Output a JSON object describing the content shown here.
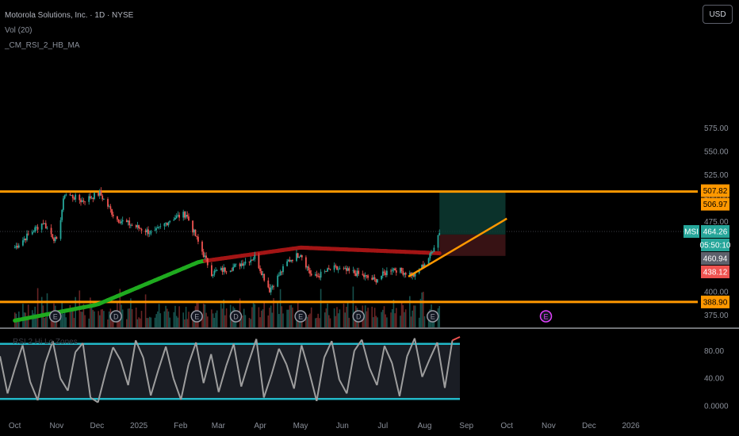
{
  "legend": {
    "symbol_line": "Motorola Solutions, Inc. · 1D · NYSE",
    "vol_line": "Vol (20)",
    "indicator_line": "_CM_RSI_2_HB_MA",
    "rsi_caption": "RSI 2 Hi Lo Zones"
  },
  "currency_button": "USD",
  "colors": {
    "background": "#000000",
    "orange_level": "#ff9800",
    "up_candle": "#26a69a",
    "down_candle": "#ef5350",
    "ma_green": "#1faa1f",
    "ma_red": "#a31515",
    "rsi_line": "#9e9e9e",
    "rsi_bands": "#22b8c8",
    "earnings_marker": "#e040fb"
  },
  "chart_data": [
    {
      "type": "candlestick",
      "symbol": "MSI",
      "exchange": "NYSE",
      "interval": "1D",
      "y_axis": {
        "ticks": [
          375,
          400,
          425,
          450,
          475,
          500,
          525,
          550,
          575
        ],
        "tick_labels": [
          "375.00",
          "400.00",
          "425.00",
          "450.00",
          "475.00",
          "500.00",
          "525.00",
          "550.00",
          "575.00"
        ],
        "visible_range": [
          368,
          600
        ]
      },
      "x_axis": {
        "labels": [
          "Oct",
          "Nov",
          "Dec",
          "2025",
          "Feb",
          "Mar",
          "Apr",
          "May",
          "Jun",
          "Jul",
          "Aug",
          "Sep",
          "Oct",
          "Nov",
          "Dec",
          "2026"
        ]
      },
      "price_path": [
        {
          "t": "2024-10-01",
          "close": 447
        },
        {
          "t": "2024-10-12",
          "close": 462
        },
        {
          "t": "2024-10-22",
          "close": 474
        },
        {
          "t": "2024-11-01",
          "close": 453
        },
        {
          "t": "2024-11-07",
          "close": 505
        },
        {
          "t": "2024-11-20",
          "close": 497
        },
        {
          "t": "2024-12-03",
          "close": 505
        },
        {
          "t": "2024-12-15",
          "close": 478
        },
        {
          "t": "2025-01-01",
          "close": 468
        },
        {
          "t": "2025-01-12",
          "close": 462
        },
        {
          "t": "2025-01-25",
          "close": 478
        },
        {
          "t": "2025-02-05",
          "close": 483
        },
        {
          "t": "2025-02-13",
          "close": 456
        },
        {
          "t": "2025-02-24",
          "close": 420
        },
        {
          "t": "2025-03-12",
          "close": 426
        },
        {
          "t": "2025-03-28",
          "close": 437
        },
        {
          "t": "2025-04-08",
          "close": 402
        },
        {
          "t": "2025-04-22",
          "close": 433
        },
        {
          "t": "2025-05-01",
          "close": 441
        },
        {
          "t": "2025-05-10",
          "close": 414
        },
        {
          "t": "2025-05-25",
          "close": 425
        },
        {
          "t": "2025-06-10",
          "close": 420
        },
        {
          "t": "2025-06-25",
          "close": 412
        },
        {
          "t": "2025-07-08",
          "close": 425
        },
        {
          "t": "2025-07-25",
          "close": 417
        },
        {
          "t": "2025-08-05",
          "close": 438
        },
        {
          "t": "2025-08-12",
          "close": 464.26
        }
      ],
      "moving_average": [
        {
          "t": "2024-10-01",
          "value": 369
        },
        {
          "t": "2024-12-01",
          "value": 386
        },
        {
          "t": "2025-02-15",
          "value": 432
        },
        {
          "t": "2025-05-01",
          "value": 447
        },
        {
          "t": "2025-08-12",
          "value": 441
        }
      ],
      "horizontal_levels": [
        506.97,
        388.9
      ],
      "trendline": {
        "start": {
          "t": "2025-07-20",
          "value": 416
        },
        "end": {
          "t": "2025-10-01",
          "value": 478
        }
      },
      "position": {
        "entry": 460.94,
        "target": 507.82,
        "stop": 438.12,
        "start": "2025-08-12",
        "end": "2025-09-30"
      },
      "price_tags": [
        {
          "label": "507.82",
          "value": 507.82,
          "kind": "target"
        },
        {
          "label": "506.97",
          "value": 506.97,
          "kind": "level"
        },
        {
          "label": "464.26",
          "value": 464.26,
          "kind": "last",
          "symbol": "MSI"
        },
        {
          "label": "05:50:10",
          "value": 464.26,
          "kind": "countdown"
        },
        {
          "label": "460.94",
          "value": 460.94,
          "kind": "entry"
        },
        {
          "label": "438.12",
          "value": 438.12,
          "kind": "stop"
        },
        {
          "label": "388.90",
          "value": 388.9,
          "kind": "level"
        }
      ],
      "event_markers": [
        {
          "t": "2024-10-31",
          "label": "E"
        },
        {
          "t": "2024-12-15",
          "label": "D"
        },
        {
          "t": "2025-02-13",
          "label": "E"
        },
        {
          "t": "2025-03-14",
          "label": "D"
        },
        {
          "t": "2025-05-01",
          "label": "E"
        },
        {
          "t": "2025-06-13",
          "label": "D"
        },
        {
          "t": "2025-08-07",
          "label": "E"
        },
        {
          "t": "2025-10-30",
          "label": "E"
        }
      ]
    },
    {
      "type": "line",
      "name": "RSI",
      "y_axis": {
        "ticks": [
          80,
          40,
          0
        ],
        "tick_labels": [
          "80.00",
          "40.00",
          "0.0000"
        ],
        "range": [
          0,
          100
        ]
      },
      "bands": [
        90,
        10
      ],
      "series": [
        {
          "values": [
            72,
            18,
            55,
            88,
            35,
            8,
            62,
            94,
            40,
            22,
            78,
            91,
            12,
            5,
            48,
            85,
            66,
            30,
            95,
            70,
            15,
            52,
            86,
            40,
            9,
            60,
            92,
            33,
            75,
            20,
            58,
            90,
            28,
            64,
            97,
            12,
            45,
            83,
            60,
            25,
            88,
            50,
            7,
            70,
            94,
            38,
            18,
            80,
            96,
            55,
            30,
            87,
            62,
            14,
            72,
            98,
            42,
            68,
            92,
            26,
            95,
            100
          ]
        }
      ]
    }
  ]
}
